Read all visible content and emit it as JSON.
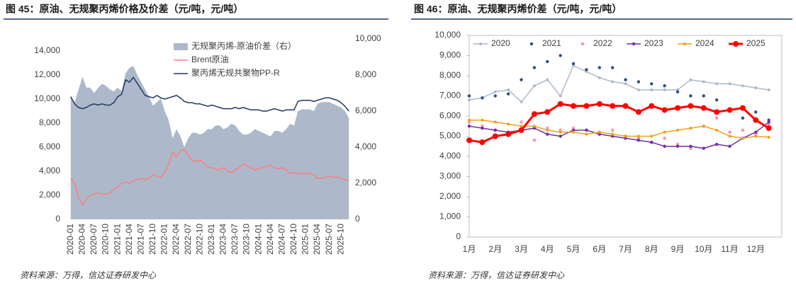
{
  "chart_data": [
    {
      "type": "line",
      "title": "图 45：原油、无规聚丙烯价格及价差（元/吨，元/吨）",
      "source": "资料来源：万得，信达证券研发中心",
      "categories": [
        "2020-01",
        null,
        null,
        "2020-04",
        null,
        null,
        "2020-07",
        null,
        null,
        "2020-10",
        null,
        null,
        "2021-01",
        null,
        null,
        "2021-04",
        null,
        null,
        "2021-07",
        null,
        null,
        "2021-10",
        null,
        null,
        "2022-01",
        null,
        null,
        "2022-04",
        null,
        null,
        "2022-07",
        null,
        null,
        "2022-10",
        null,
        null,
        "2023-01",
        null,
        null,
        "2023-04",
        null,
        null,
        "2023-07",
        null,
        null,
        "2023-10",
        null,
        null,
        "2024-01",
        null,
        null,
        "2024-04",
        null,
        null,
        "2024-07",
        null,
        null,
        "2024-10",
        null,
        null,
        "2025-01",
        null,
        null,
        "2025-04",
        null,
        null,
        "2025-07",
        null,
        null,
        "2025-10",
        null,
        null
      ],
      "ylim": [
        0,
        15000
      ],
      "yticks": [
        0,
        {
          "value": 2000,
          "label": "2,000"
        },
        {
          "value": 4000,
          "label": "4,000"
        },
        {
          "value": 6000,
          "label": "6,000"
        },
        {
          "value": 8000,
          "label": "8,000"
        },
        {
          "value": 10000,
          "label": "10,000"
        },
        {
          "value": 12000,
          "label": "12,000"
        },
        {
          "value": 14000,
          "label": "14,000"
        }
      ],
      "y2lim": [
        0,
        10000
      ],
      "y2ticks": [
        0,
        {
          "value": 2000,
          "label": "2,000"
        },
        {
          "value": 4000,
          "label": "4,000"
        },
        {
          "value": 6000,
          "label": "6,000"
        },
        {
          "value": 8000,
          "label": "8,000"
        },
        {
          "value": 10000,
          "label": "10,000"
        }
      ],
      "series": [
        {
          "name": "无规聚丙烯-原油价差（右）",
          "type": "area",
          "axis": "y2",
          "color": "#adb9ca",
          "values": [
            6800,
            6500,
            7200,
            7900,
            7300,
            7300,
            7000,
            7300,
            7500,
            7400,
            7200,
            7100,
            7300,
            7100,
            8100,
            8400,
            8500,
            8000,
            7600,
            7200,
            6800,
            6300,
            6500,
            6700,
            6000,
            5500,
            4500,
            5000,
            4600,
            4000,
            4500,
            4800,
            4800,
            4700,
            4800,
            5000,
            5000,
            5200,
            5200,
            5000,
            5100,
            5300,
            5200,
            4900,
            4700,
            4700,
            4800,
            5000,
            4900,
            4800,
            4700,
            4600,
            4900,
            4900,
            4800,
            5000,
            5300,
            5200,
            6000,
            6100,
            6100,
            6100,
            6000,
            6400,
            6500,
            6500,
            6500,
            6400,
            6300,
            6200,
            6000,
            5600
          ]
        },
        {
          "name": "Brent原油",
          "type": "line",
          "color": "#ff7c80",
          "values": [
            3400,
            3000,
            1800,
            1200,
            1700,
            2000,
            2100,
            2200,
            2100,
            2100,
            2200,
            2500,
            2700,
            3000,
            3100,
            3000,
            3200,
            3300,
            3400,
            3300,
            3400,
            3700,
            3600,
            3500,
            3900,
            4600,
            5600,
            5200,
            5700,
            5800,
            5300,
            4900,
            4800,
            4900,
            4700,
            4300,
            4300,
            4200,
            4100,
            4300,
            4000,
            3900,
            4100,
            4300,
            4600,
            4500,
            4300,
            4100,
            4200,
            4300,
            4400,
            4500,
            4300,
            4200,
            4300,
            4100,
            3800,
            3900,
            3800,
            3800,
            3800,
            3800,
            3700,
            3400,
            3400,
            3500,
            3600,
            3500,
            3500,
            3400,
            3300,
            3200
          ]
        },
        {
          "name": "聚丙烯无规共聚物PP-R",
          "type": "line",
          "color": "#203864",
          "values": [
            10200,
            9600,
            9300,
            9200,
            9300,
            9500,
            9600,
            9500,
            9600,
            9500,
            9500,
            9700,
            10200,
            10400,
            11600,
            11400,
            11800,
            11300,
            10800,
            10300,
            10200,
            10100,
            10300,
            10100,
            10000,
            10100,
            10200,
            10300,
            10100,
            9800,
            9700,
            9700,
            9600,
            9600,
            9500,
            9400,
            9500,
            9400,
            9300,
            9200,
            9200,
            9200,
            9300,
            9200,
            9300,
            9200,
            9100,
            9100,
            9100,
            9000,
            9000,
            9100,
            9200,
            9100,
            9000,
            9100,
            9100,
            9100,
            9800,
            9900,
            9900,
            9900,
            9800,
            9900,
            10000,
            10100,
            10100,
            10000,
            9900,
            9700,
            9400,
            9000
          ]
        }
      ]
    },
    {
      "type": "line",
      "title": "图 46：原油、无规聚丙烯价差（元/吨，元/吨）",
      "source": "资料来源：万得，信达证券研发中心",
      "categories": [
        "1月",
        null,
        "2月",
        null,
        "3月",
        null,
        "4月",
        null,
        "5月",
        null,
        "6月",
        null,
        "7月",
        null,
        "8月",
        null,
        "9月",
        null,
        "10月",
        null,
        "11月",
        null,
        "12月",
        null
      ],
      "ylim": [
        0,
        10000
      ],
      "yticks": [
        0,
        {
          "value": 1000,
          "label": "1,000"
        },
        {
          "value": 2000,
          "label": "2,000"
        },
        {
          "value": 3000,
          "label": "3,000"
        },
        {
          "value": 4000,
          "label": "4,000"
        },
        {
          "value": 5000,
          "label": "5,000"
        },
        {
          "value": 6000,
          "label": "6,000"
        },
        {
          "value": 7000,
          "label": "7,000"
        },
        {
          "value": 8000,
          "label": "8,000"
        },
        {
          "value": 9000,
          "label": "9,000"
        },
        {
          "value": 10000,
          "label": "10,000"
        }
      ],
      "series": [
        {
          "name": "2020",
          "color": "#adb9ca",
          "linestyle": "solid",
          "line_width": 1.5,
          "marker_size": 2,
          "values": [
            6800,
            6900,
            7200,
            7300,
            6700,
            7500,
            7800,
            7000,
            8500,
            8200,
            7900,
            7700,
            7600,
            7300,
            7300,
            7300,
            7300,
            7800,
            7700,
            7600,
            7600,
            7500,
            7400,
            7300
          ]
        },
        {
          "name": "2021",
          "color": "#2f4f7f",
          "linestyle": "none",
          "line_width": 0,
          "marker_size": 2.2,
          "values": [
            7000,
            6900,
            7000,
            7100,
            7800,
            8400,
            8700,
            9000,
            8600,
            8300,
            8400,
            8400,
            7800,
            7700,
            7600,
            7500,
            7200,
            7000,
            7000,
            6800,
            6300,
            5900,
            6200,
            5800
          ]
        },
        {
          "name": "2022",
          "color": "#f4a0a8",
          "linestyle": "none",
          "line_width": 0,
          "marker_size": 2.4,
          "values": [
            5700,
            5500,
            5300,
            5200,
            5700,
            4800,
            5400,
            5300,
            5400,
            5300,
            5200,
            5300,
            5000,
            4900,
            4700,
            4900,
            4600,
            4400,
            5500,
            5900,
            5200,
            5300,
            5100,
            5600
          ]
        },
        {
          "name": "2023",
          "color": "#7030a0",
          "linestyle": "solid",
          "line_width": 1.5,
          "marker_size": 2.2,
          "values": [
            5500,
            5400,
            5300,
            5200,
            5300,
            5400,
            5100,
            5000,
            5300,
            5300,
            5100,
            5000,
            4900,
            4800,
            4700,
            4500,
            4500,
            4500,
            4400,
            4600,
            4500,
            4900,
            5200,
            5700
          ]
        },
        {
          "name": "2024",
          "color": "#f0a020",
          "linestyle": "solid",
          "line_width": 1.5,
          "marker_size": 2,
          "values": [
            5800,
            5800,
            5700,
            5600,
            5500,
            5500,
            5300,
            5200,
            5200,
            5100,
            5200,
            5100,
            5000,
            5000,
            5000,
            5200,
            5300,
            5400,
            5500,
            5300,
            5000,
            4900,
            5000,
            4950
          ]
        },
        {
          "name": "2025",
          "color": "#ff0000",
          "linestyle": "solid",
          "line_width": 3,
          "marker_size": 4,
          "values": [
            4800,
            4700,
            5000,
            5100,
            5300,
            6100,
            6200,
            6600,
            6500,
            6500,
            6600,
            6500,
            6500,
            6200,
            6500,
            6300,
            6400,
            6500,
            6400,
            6200,
            6300,
            6400,
            5800,
            5400
          ]
        }
      ]
    }
  ]
}
